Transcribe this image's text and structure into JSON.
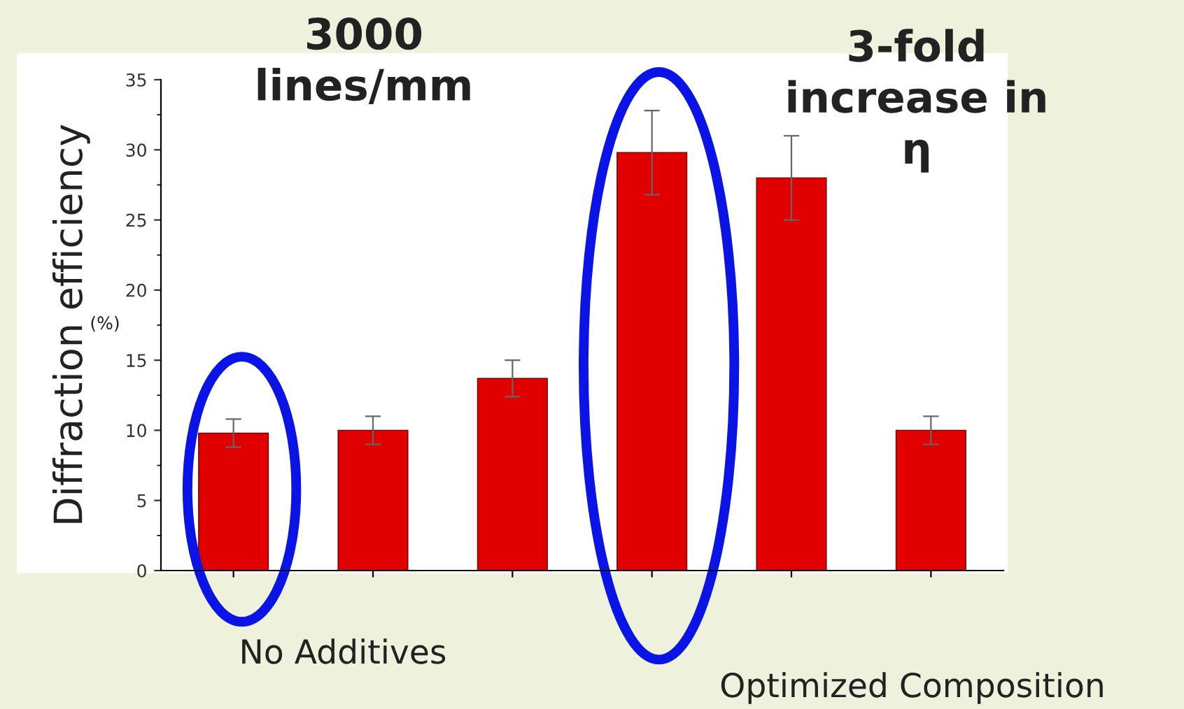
{
  "chart_data": {
    "type": "bar",
    "ylabel": "Diffraction efficiency",
    "categories": [
      null,
      null,
      null,
      null,
      null,
      null
    ],
    "values": [
      9.8,
      10,
      13.7,
      29.8,
      28,
      10
    ],
    "errors": [
      1,
      1,
      1.3,
      3,
      3,
      1
    ],
    "color": "#e00000",
    "ylim": [
      0,
      35
    ],
    "yticks": [
      0,
      5,
      10,
      15,
      20,
      25,
      30,
      35
    ],
    "tick_labels": "y",
    "grid": false,
    "annotations": [
      "(%)",
      "3000 lines/mm",
      "3-fold increase in η",
      "No Additives",
      "Optimized Composition"
    ]
  }
}
